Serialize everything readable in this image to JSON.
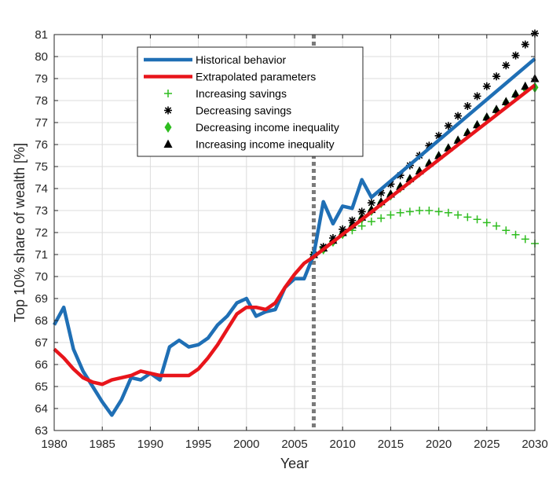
{
  "chart_data": {
    "type": "line",
    "xlabel": "Year",
    "ylabel": "Top 10% share of wealth [%]",
    "xlim": [
      1980,
      2030
    ],
    "ylim": [
      63,
      81
    ],
    "xticks": [
      1980,
      1985,
      1990,
      1995,
      2000,
      2005,
      2010,
      2015,
      2020,
      2025,
      2030
    ],
    "yticks": [
      63,
      64,
      65,
      66,
      67,
      68,
      69,
      70,
      71,
      72,
      73,
      74,
      75,
      76,
      77,
      78,
      79,
      80,
      81
    ],
    "grid": true,
    "legend_position": "top-left",
    "vertical_reference_line": {
      "x": 2007,
      "style": "dotted",
      "color": "#7a7a7a"
    },
    "series": [
      {
        "name": "Historical behavior",
        "style": "line",
        "color": "#1f6fb5",
        "x": [
          1980,
          1981,
          1982,
          1983,
          1984,
          1985,
          1986,
          1987,
          1988,
          1989,
          1990,
          1991,
          1992,
          1993,
          1994,
          1995,
          1996,
          1997,
          1998,
          1999,
          2000,
          2001,
          2002,
          2003,
          2004,
          2005,
          2006,
          2007,
          2008,
          2009,
          2010,
          2011,
          2012,
          2013,
          2030
        ],
        "y": [
          67.8,
          68.6,
          66.7,
          65.7,
          65.0,
          64.3,
          63.7,
          64.4,
          65.4,
          65.3,
          65.6,
          65.3,
          66.8,
          67.1,
          66.8,
          66.9,
          67.2,
          67.8,
          68.2,
          68.8,
          69.0,
          68.2,
          68.4,
          68.5,
          69.5,
          69.9,
          69.9,
          71.0,
          73.4,
          72.4,
          73.2,
          73.1,
          74.4,
          73.6,
          79.9
        ]
      },
      {
        "name": "Extrapolated parameters",
        "style": "line",
        "color": "#e8151b",
        "x": [
          1980,
          1981,
          1982,
          1983,
          1984,
          1985,
          1986,
          1987,
          1988,
          1989,
          1990,
          1991,
          1992,
          1993,
          1994,
          1995,
          1996,
          1997,
          1998,
          1999,
          2000,
          2001,
          2002,
          2003,
          2004,
          2005,
          2006,
          2007,
          2030
        ],
        "y": [
          66.7,
          66.3,
          65.8,
          65.4,
          65.2,
          65.1,
          65.3,
          65.4,
          65.5,
          65.7,
          65.6,
          65.5,
          65.5,
          65.5,
          65.5,
          65.8,
          66.3,
          66.9,
          67.6,
          68.3,
          68.6,
          68.6,
          68.5,
          68.8,
          69.5,
          70.1,
          70.6,
          70.9,
          78.7
        ]
      },
      {
        "name": "Increasing savings",
        "style": "marker",
        "marker": "plus",
        "color": "#2ebd1f",
        "x": [
          2007,
          2008,
          2009,
          2010,
          2011,
          2012,
          2013,
          2014,
          2015,
          2016,
          2017,
          2018,
          2019,
          2020,
          2021,
          2022,
          2023,
          2024,
          2025,
          2026,
          2027,
          2028,
          2029,
          2030
        ],
        "y": [
          71.0,
          71.3,
          71.6,
          71.9,
          72.1,
          72.3,
          72.5,
          72.65,
          72.8,
          72.9,
          72.95,
          73.0,
          73.0,
          72.95,
          72.9,
          72.8,
          72.7,
          72.6,
          72.45,
          72.3,
          72.1,
          71.9,
          71.7,
          71.5
        ]
      },
      {
        "name": "Decreasing savings",
        "style": "marker",
        "marker": "asterisk",
        "color": "#000000",
        "x": [
          2007,
          2008,
          2009,
          2010,
          2011,
          2012,
          2013,
          2014,
          2015,
          2016,
          2017,
          2018,
          2019,
          2020,
          2021,
          2022,
          2023,
          2024,
          2025,
          2026,
          2027,
          2028,
          2029,
          2030
        ],
        "y": [
          71.0,
          71.35,
          71.75,
          72.15,
          72.55,
          72.95,
          73.35,
          73.8,
          74.2,
          74.6,
          75.05,
          75.5,
          75.95,
          76.4,
          76.85,
          77.3,
          77.75,
          78.2,
          78.65,
          79.1,
          79.6,
          80.05,
          80.55,
          81.05
        ]
      },
      {
        "name": "Decreasing income inequality",
        "style": "marker",
        "marker": "diamond",
        "color": "#2ebd1f",
        "x": [
          2007,
          2008,
          2009,
          2010,
          2011,
          2012,
          2013,
          2014,
          2015,
          2016,
          2017,
          2018,
          2019,
          2020,
          2021,
          2022,
          2023,
          2024,
          2025,
          2026,
          2027,
          2028,
          2029,
          2030
        ],
        "y": [
          71.0,
          71.25,
          71.6,
          71.95,
          72.3,
          72.65,
          73.0,
          73.35,
          73.7,
          74.05,
          74.4,
          74.75,
          75.1,
          75.45,
          75.8,
          76.15,
          76.5,
          76.85,
          77.2,
          77.55,
          77.9,
          78.25,
          78.55,
          78.6
        ]
      },
      {
        "name": "Increasing income inequality",
        "style": "marker",
        "marker": "triangle",
        "color": "#000000",
        "x": [
          2007,
          2008,
          2009,
          2010,
          2011,
          2012,
          2013,
          2014,
          2015,
          2016,
          2017,
          2018,
          2019,
          2020,
          2021,
          2022,
          2023,
          2024,
          2025,
          2026,
          2027,
          2028,
          2029,
          2030
        ],
        "y": [
          71.0,
          71.3,
          71.65,
          72.0,
          72.35,
          72.7,
          73.05,
          73.4,
          73.75,
          74.1,
          74.45,
          74.8,
          75.15,
          75.5,
          75.85,
          76.2,
          76.55,
          76.9,
          77.25,
          77.6,
          77.95,
          78.3,
          78.65,
          79.0
        ]
      }
    ]
  }
}
